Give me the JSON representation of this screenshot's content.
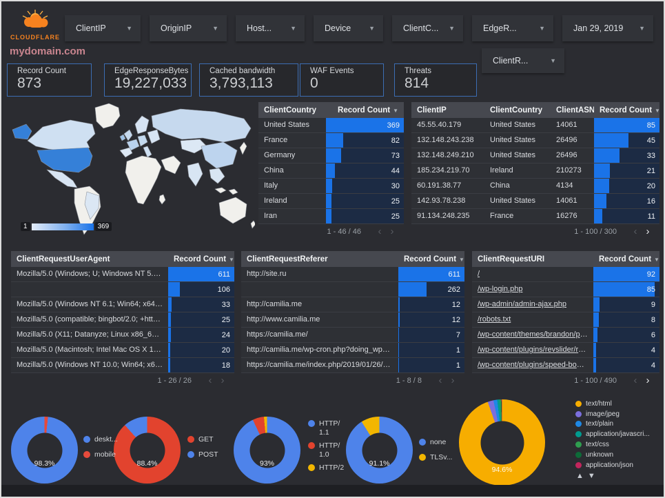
{
  "brand": {
    "logo_text": "CLOUDFLARE"
  },
  "title": "mydomain.com",
  "filters": {
    "chips": [
      "ClientIP",
      "OriginIP",
      "Host...",
      "Device",
      "ClientC...",
      "EdgeR...",
      "Jan 29, 2019"
    ],
    "chip_row2": "ClientR..."
  },
  "scorecards": [
    {
      "label": "Record Count",
      "value": "873"
    },
    {
      "label": "EdgeResponseBytes",
      "value": "19,227,033"
    },
    {
      "label": "Cached bandwidth",
      "value": "3,793,113"
    },
    {
      "label": "WAF Events",
      "value": "0"
    },
    {
      "label": "Threats",
      "value": "814"
    }
  ],
  "map": {
    "type": "choropleth",
    "metric": "Record Count",
    "legend_min": "1",
    "legend_max": "369",
    "top_country": "United States"
  },
  "tables": {
    "country": {
      "columns": [
        "ClientCountry",
        "Record Count"
      ],
      "rows": [
        [
          "United States",
          369
        ],
        [
          "France",
          82
        ],
        [
          "Germany",
          73
        ],
        [
          "China",
          44
        ],
        [
          "Italy",
          30
        ],
        [
          "Ireland",
          25
        ],
        [
          "Iran",
          25
        ]
      ],
      "pagination": "1 - 46 / 46",
      "prev_enabled": false,
      "next_enabled": false
    },
    "ip": {
      "columns": [
        "ClientIP",
        "ClientCountry",
        "ClientASN",
        "Record Count"
      ],
      "rows": [
        [
          "45.55.40.179",
          "United States",
          "14061",
          85
        ],
        [
          "132.148.243.238",
          "United States",
          "26496",
          45
        ],
        [
          "132.148.249.210",
          "United States",
          "26496",
          33
        ],
        [
          "185.234.219.70",
          "Ireland",
          "210273",
          21
        ],
        [
          "60.191.38.77",
          "China",
          "4134",
          20
        ],
        [
          "142.93.78.238",
          "United States",
          "14061",
          16
        ],
        [
          "91.134.248.235",
          "France",
          "16276",
          11
        ]
      ],
      "pagination": "1 - 100 / 300",
      "prev_enabled": false,
      "next_enabled": true
    },
    "ua": {
      "columns": [
        "ClientRequestUserAgent",
        "Record Count"
      ],
      "rows": [
        [
          "Mozilla/5.0 (Windows; U; Windows NT 5.1; en-U...",
          611
        ],
        [
          "",
          106
        ],
        [
          "Mozilla/5.0 (Windows NT 6.1; Win64; x64; rv:64...",
          33
        ],
        [
          "Mozilla/5.0 (compatible; bingbot/2.0; +http://w...",
          25
        ],
        [
          "Mozilla/5.0 (X11; Datanyze; Linux x86_64) Appl...",
          24
        ],
        [
          "Mozilla/5.0 (Macintosh; Intel Mac OS X 10.11; r...",
          20
        ],
        [
          "Mozilla/5.0 (Windows NT 10.0; Win64; x64) App...",
          18
        ]
      ],
      "pagination": "1 - 26 / 26",
      "prev_enabled": false,
      "next_enabled": false
    },
    "ref": {
      "columns": [
        "ClientRequestReferer",
        "Record Count"
      ],
      "rows": [
        [
          "http://site.ru",
          611
        ],
        [
          "",
          262
        ],
        [
          "http://camilia.me",
          12
        ],
        [
          "http://www.camilia.me",
          12
        ],
        [
          "https://camilia.me/",
          7
        ],
        [
          "http://camilia.me/wp-cron.php?doing_wp_cron...",
          1
        ],
        [
          "https://camilia.me/index.php/2019/01/26/stor...",
          1
        ]
      ],
      "pagination": "1 - 8 / 8",
      "prev_enabled": false,
      "next_enabled": false
    },
    "uri": {
      "columns": [
        "ClientRequestURI",
        "Record Count"
      ],
      "links": true,
      "rows": [
        [
          "/",
          92
        ],
        [
          "/wp-login.php",
          85
        ],
        [
          "/wp-admin/admin-ajax.php",
          9
        ],
        [
          "/robots.txt",
          8
        ],
        [
          "/wp-content/themes/brandon/plu...",
          6
        ],
        [
          "/wp-content/plugins/revslider/rs-p...",
          4
        ],
        [
          "/wp-content/plugins/speed-booste...",
          4
        ]
      ],
      "pagination": "1 - 100 / 490",
      "prev_enabled": false,
      "next_enabled": true
    }
  },
  "donuts": [
    {
      "name": "device-type",
      "center_label": "98.3%",
      "slices": [
        {
          "label": "mobile",
          "pct": 1.7,
          "color": "#e64a3c"
        },
        {
          "label": "desktop",
          "pct": 98.3,
          "color": "#4e83ea"
        }
      ],
      "legend": [
        {
          "label": "deskt...",
          "color": "#4e83ea"
        },
        {
          "label": "mobile",
          "color": "#e64a3c"
        }
      ]
    },
    {
      "name": "request-method",
      "center_label": "88.4%",
      "slices": [
        {
          "label": "GET",
          "pct": 88.4,
          "color": "#e2432e"
        },
        {
          "label": "POST",
          "pct": 11.6,
          "color": "#4e83ea"
        }
      ],
      "legend": [
        {
          "label": "GET",
          "color": "#e2432e"
        },
        {
          "label": "POST",
          "color": "#4e83ea"
        }
      ]
    },
    {
      "name": "http-protocol",
      "center_label": "93%",
      "slices": [
        {
          "label": "HTTP/1.1",
          "pct": 93,
          "color": "#4e83ea"
        },
        {
          "label": "HTTP/1.0",
          "pct": 5.5,
          "color": "#e2432e"
        },
        {
          "label": "HTTP/2",
          "pct": 1.5,
          "color": "#f2b600"
        }
      ],
      "legend": [
        {
          "label": "HTTP/\n1.1",
          "color": "#4e83ea"
        },
        {
          "label": "HTTP/\n1.0",
          "color": "#e2432e"
        },
        {
          "label": "HTTP/2",
          "color": "#f2b600"
        }
      ]
    },
    {
      "name": "tls-version",
      "center_label": "91.1%",
      "slices": [
        {
          "label": "none",
          "pct": 91.1,
          "color": "#4e83ea"
        },
        {
          "label": "TLSv...",
          "pct": 8.9,
          "color": "#f2b600"
        }
      ],
      "legend": [
        {
          "label": "none",
          "color": "#4e83ea"
        },
        {
          "label": "TLSv...",
          "color": "#f2b600"
        }
      ]
    },
    {
      "name": "content-type",
      "center_label": "94.6%",
      "slices": [
        {
          "label": "text/html",
          "pct": 94.6,
          "color": "#f7ad00"
        },
        {
          "label": "image/jpeg",
          "pct": 2.2,
          "color": "#7b6fdd"
        },
        {
          "label": "text/plain",
          "pct": 1.4,
          "color": "#1e88e5"
        },
        {
          "label": "application/javascri...",
          "pct": 0.9,
          "color": "#009b8f"
        },
        {
          "label": "text/css",
          "pct": 0.45,
          "color": "#2f9e4f"
        },
        {
          "label": "unknown",
          "pct": 0.25,
          "color": "#0d6b38"
        },
        {
          "label": "application/json",
          "pct": 0.2,
          "color": "#c2255c"
        }
      ],
      "legend": [
        {
          "label": "text/html",
          "color": "#f7ad00"
        },
        {
          "label": "image/jpeg",
          "color": "#7b6fdd"
        },
        {
          "label": "text/plain",
          "color": "#1e88e5"
        },
        {
          "label": "application/javascri...",
          "color": "#009b8f"
        },
        {
          "label": "text/css",
          "color": "#2f9e4f"
        },
        {
          "label": "unknown",
          "color": "#0d6b38"
        },
        {
          "label": "application/json",
          "color": "#c2255c"
        }
      ]
    }
  ],
  "colors": {
    "accent_blue": "#1a73e8",
    "bar_track": "#1c2b44",
    "card_border": "#3c6eb4",
    "title_pink": "#c9858f",
    "brand_orange": "#f6821f"
  }
}
